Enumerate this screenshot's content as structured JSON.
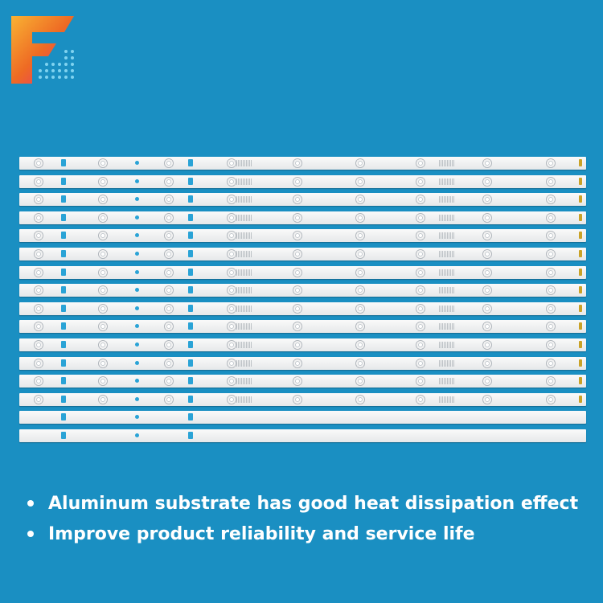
{
  "brand": {
    "logo_icon": "f-letter-gradient-logo-icon",
    "colors": {
      "background": "#1a8fc2",
      "logo_orange": "#f39a1e",
      "logo_red": "#e8452c",
      "logo_pink": "#e62a8b"
    }
  },
  "product": {
    "strip_count": 16,
    "led_strip_count": 14,
    "blank_strip_count": 2
  },
  "features": [
    {
      "text": "Aluminum substrate has good heat dissipation effect"
    },
    {
      "text": "Improve product reliability and service life"
    }
  ]
}
